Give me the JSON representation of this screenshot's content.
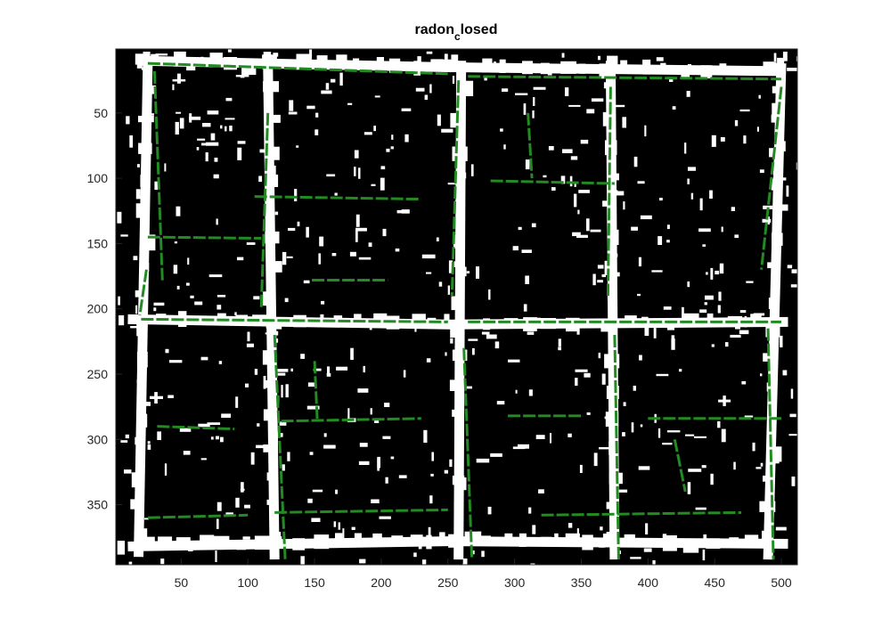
{
  "chart_data": {
    "type": "image",
    "title": {
      "base": "radon",
      "subscript": "c",
      "rest": "losed"
    },
    "xlabel": "",
    "ylabel": "",
    "xlim": [
      1,
      512
    ],
    "ylim": [
      396,
      1
    ],
    "y_reversed": true,
    "xticks": [
      50,
      100,
      150,
      200,
      250,
      300,
      350,
      400,
      450,
      500
    ],
    "yticks": [
      50,
      100,
      150,
      200,
      250,
      300,
      350
    ],
    "grid": false,
    "colors": {
      "background": "#000000",
      "foreground": "#ffffff",
      "lines": "#228b22",
      "axis": "#262626"
    },
    "white_bands": [
      [
        [
          20,
          10
        ],
        [
          250,
          15
        ],
        [
          500,
          18
        ]
      ],
      [
        [
          10,
          208
        ],
        [
          250,
          212
        ],
        [
          505,
          210
        ]
      ],
      [
        [
          10,
          382
        ],
        [
          250,
          378
        ],
        [
          505,
          380
        ]
      ],
      [
        [
          25,
          10
        ],
        [
          18,
          390
        ]
      ],
      [
        [
          115,
          10
        ],
        [
          120,
          392
        ]
      ],
      [
        [
          260,
          10
        ],
        [
          258,
          392
        ]
      ],
      [
        [
          372,
          10
        ],
        [
          375,
          392
        ]
      ],
      [
        [
          500,
          12
        ],
        [
          490,
          392
        ]
      ]
    ],
    "detected_lines": [
      [
        [
          25,
          12
        ],
        [
          250,
          20
        ]
      ],
      [
        [
          265,
          22
        ],
        [
          500,
          24
        ]
      ],
      [
        [
          105,
          114
        ],
        [
          230,
          116
        ]
      ],
      [
        [
          282,
          102
        ],
        [
          375,
          104
        ]
      ],
      [
        [
          25,
          145
        ],
        [
          110,
          146
        ]
      ],
      [
        [
          148,
          178
        ],
        [
          205,
          178
        ]
      ],
      [
        [
          20,
          208
        ],
        [
          250,
          210
        ]
      ],
      [
        [
          265,
          210
        ],
        [
          500,
          210
        ]
      ],
      [
        [
          32,
          290
        ],
        [
          90,
          292
        ]
      ],
      [
        [
          125,
          286
        ],
        [
          230,
          284
        ]
      ],
      [
        [
          295,
          282
        ],
        [
          350,
          282
        ]
      ],
      [
        [
          400,
          284
        ],
        [
          500,
          284
        ]
      ],
      [
        [
          25,
          360
        ],
        [
          100,
          358
        ]
      ],
      [
        [
          120,
          356
        ],
        [
          250,
          354
        ]
      ],
      [
        [
          320,
          358
        ],
        [
          470,
          356
        ]
      ],
      [
        [
          30,
          18
        ],
        [
          36,
          180
        ]
      ],
      [
        [
          24,
          170
        ],
        [
          19,
          205
        ]
      ],
      [
        [
          115,
          50
        ],
        [
          110,
          200
        ]
      ],
      [
        [
          120,
          220
        ],
        [
          128,
          392
        ]
      ],
      [
        [
          258,
          25
        ],
        [
          253,
          190
        ]
      ],
      [
        [
          262,
          230
        ],
        [
          268,
          392
        ]
      ],
      [
        [
          372,
          30
        ],
        [
          370,
          190
        ]
      ],
      [
        [
          375,
          220
        ],
        [
          378,
          392
        ]
      ],
      [
        [
          500,
          30
        ],
        [
          485,
          170
        ]
      ],
      [
        [
          490,
          215
        ],
        [
          494,
          392
        ]
      ],
      [
        [
          310,
          50
        ],
        [
          313,
          100
        ]
      ],
      [
        [
          150,
          240
        ],
        [
          152,
          285
        ]
      ],
      [
        [
          420,
          300
        ],
        [
          428,
          340
        ]
      ]
    ]
  }
}
